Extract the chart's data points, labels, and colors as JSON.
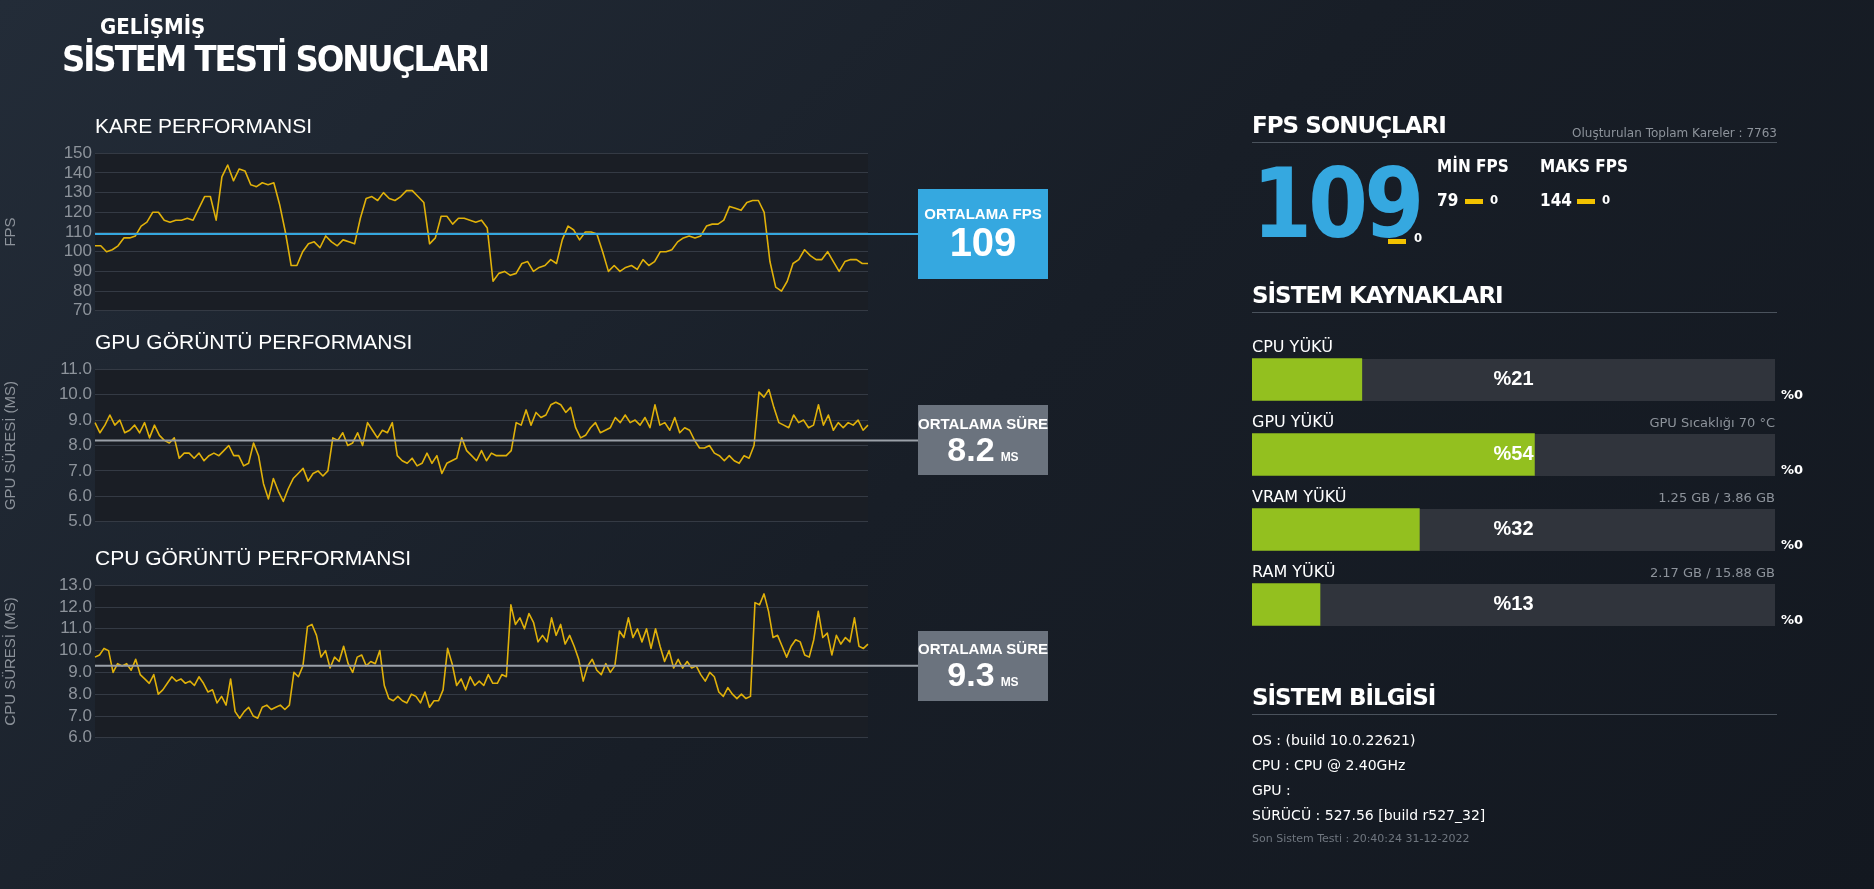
{
  "chart_data": [
    {
      "type": "other",
      "title": "SİSTEM TESTİ SONUÇLARI",
      "subtitle": "GELİŞMİŞ"
    },
    {
      "type": "line",
      "title": "KARE PERFORMANSI",
      "ylabel": "FPS",
      "ylim": [
        70,
        150
      ],
      "yticks": [
        70,
        80,
        90,
        100,
        110,
        120,
        130,
        140,
        150
      ],
      "grid": "y",
      "tick_labels": "y",
      "categories": [
        null,
        null,
        null,
        null,
        null,
        null,
        null,
        null,
        null,
        null,
        null,
        null,
        null,
        null,
        null,
        null,
        null,
        null,
        null,
        null,
        null,
        null,
        null,
        null,
        null,
        null,
        null,
        null,
        null,
        null,
        null,
        null,
        null,
        null,
        null,
        null,
        null,
        null,
        null,
        null,
        null,
        null,
        null,
        null,
        null,
        null,
        null,
        null,
        null,
        null,
        null,
        null,
        null,
        null,
        null,
        null,
        null,
        null,
        null,
        null,
        null,
        null,
        null,
        null,
        null,
        null,
        null,
        null,
        null,
        null,
        null,
        null,
        null,
        null,
        null,
        null,
        null,
        null,
        null,
        null,
        null,
        null,
        null,
        null,
        null,
        null,
        null,
        null,
        null,
        null,
        null,
        null,
        null,
        null,
        null,
        null,
        null,
        null,
        null,
        null,
        null,
        null,
        null,
        null,
        null,
        null,
        null,
        null,
        null,
        null,
        null,
        null,
        null,
        null,
        null,
        null,
        null,
        null,
        null,
        null,
        null,
        null,
        null,
        null,
        null,
        null,
        null,
        null,
        null,
        null,
        null,
        null,
        null,
        null,
        null
      ],
      "series": [
        {
          "color": "#e0b10a",
          "values": [
            103,
            103,
            100,
            101,
            103,
            107,
            107,
            108,
            113,
            115,
            120,
            120,
            116,
            115,
            116,
            116,
            117,
            116,
            122,
            128,
            128,
            116,
            138,
            144,
            136,
            142,
            141,
            134,
            133,
            135,
            134,
            135,
            124,
            110,
            93,
            93,
            100,
            104,
            105,
            102,
            108,
            105,
            103,
            106,
            105,
            104,
            117,
            127,
            128,
            126,
            130,
            127,
            126,
            128,
            131,
            131,
            128,
            125,
            104,
            107,
            118,
            118,
            114,
            117,
            117,
            116,
            115,
            116,
            112,
            85,
            89,
            90,
            88,
            89,
            94,
            95,
            90,
            92,
            93,
            96,
            94,
            106,
            113,
            111,
            106,
            110,
            110,
            109,
            100,
            90,
            93,
            90,
            92,
            93,
            91,
            96,
            93,
            95,
            100,
            100,
            101,
            105,
            107,
            108,
            107,
            108,
            113,
            114,
            114,
            116,
            123,
            122,
            121,
            125,
            126,
            126,
            120,
            95,
            82,
            80,
            85,
            94,
            96,
            101,
            98,
            96,
            96,
            100,
            95,
            90,
            95,
            96,
            96,
            94,
            94
          ]
        }
      ],
      "ref_lines": [
        {
          "axis": "y",
          "value": 109,
          "label": "ORTALAMA FPS",
          "color": "#35a8e0"
        }
      ],
      "annotations": [
        "109"
      ]
    },
    {
      "type": "line",
      "title": "GPU GÖRÜNTÜ PERFORMANSI",
      "ylabel": "GPU SÜRESİ (MS)",
      "ylim": [
        5,
        11
      ],
      "yticks": [
        {
          "value": 5,
          "label": "5.0"
        },
        {
          "value": 6,
          "label": "6.0"
        },
        {
          "value": 7,
          "label": "7.0"
        },
        {
          "value": 8,
          "label": "8.0"
        },
        {
          "value": 9,
          "label": "9.0"
        },
        {
          "value": 10,
          "label": "10.0"
        },
        {
          "value": 11,
          "label": "11.0"
        }
      ],
      "grid": "y",
      "tick_labels": "y",
      "categories": [
        null,
        null,
        null,
        null,
        null,
        null,
        null,
        null,
        null,
        null,
        null,
        null,
        null,
        null,
        null,
        null,
        null,
        null,
        null,
        null,
        null,
        null,
        null,
        null,
        null,
        null,
        null,
        null,
        null,
        null,
        null,
        null,
        null,
        null,
        null,
        null,
        null,
        null,
        null,
        null,
        null,
        null,
        null,
        null,
        null,
        null,
        null,
        null,
        null,
        null,
        null,
        null,
        null,
        null,
        null,
        null,
        null,
        null,
        null,
        null,
        null,
        null,
        null,
        null,
        null,
        null,
        null,
        null,
        null,
        null,
        null,
        null,
        null,
        null,
        null,
        null,
        null,
        null,
        null,
        null,
        null,
        null,
        null,
        null,
        null,
        null,
        null,
        null,
        null,
        null,
        null,
        null,
        null,
        null,
        null,
        null,
        null,
        null,
        null,
        null,
        null,
        null,
        null,
        null,
        null,
        null,
        null,
        null,
        null,
        null,
        null,
        null,
        null,
        null,
        null,
        null,
        null,
        null,
        null,
        null,
        null,
        null,
        null,
        null,
        null,
        null,
        null,
        null,
        null,
        null,
        null,
        null,
        null,
        null,
        null,
        null,
        null,
        null,
        null,
        null,
        null,
        null,
        null,
        null,
        null,
        null,
        null,
        null,
        null,
        null,
        null,
        null,
        null,
        null,
        null,
        null,
        null
      ],
      "series": [
        {
          "color": "#e0b10a",
          "values": [
            8.9,
            8.5,
            8.8,
            9.2,
            8.8,
            9.0,
            8.5,
            8.6,
            8.8,
            8.5,
            8.9,
            8.3,
            8.8,
            8.4,
            8.2,
            8.1,
            8.3,
            7.5,
            7.7,
            7.7,
            7.5,
            7.7,
            7.4,
            7.6,
            7.7,
            7.6,
            7.8,
            8.0,
            7.6,
            7.6,
            7.2,
            7.3,
            8.1,
            7.6,
            6.5,
            5.9,
            6.7,
            6.2,
            5.8,
            6.3,
            6.7,
            6.9,
            7.1,
            6.6,
            6.9,
            7.0,
            6.8,
            7.0,
            8.3,
            8.2,
            8.5,
            8.0,
            8.1,
            8.5,
            8.0,
            8.9,
            8.6,
            8.3,
            8.6,
            8.5,
            8.9,
            7.6,
            7.4,
            7.3,
            7.5,
            7.2,
            7.3,
            7.7,
            7.3,
            7.6,
            6.9,
            7.3,
            7.4,
            7.5,
            8.3,
            7.8,
            7.6,
            7.4,
            7.8,
            7.4,
            7.7,
            7.6,
            7.6,
            7.6,
            7.8,
            8.9,
            8.8,
            9.4,
            8.8,
            9.3,
            9.1,
            9.2,
            9.6,
            9.7,
            9.6,
            9.3,
            9.5,
            8.7,
            8.3,
            8.4,
            8.7,
            8.9,
            8.5,
            8.6,
            8.7,
            9.1,
            8.9,
            9.2,
            8.9,
            9.0,
            8.8,
            9.1,
            8.7,
            9.6,
            8.8,
            8.9,
            8.6,
            9.1,
            8.5,
            8.7,
            8.6,
            8.2,
            7.9,
            7.9,
            8.0,
            7.7,
            7.6,
            7.4,
            7.6,
            7.4,
            7.3,
            7.6,
            7.5,
            8.0,
            10.1,
            9.9,
            10.2,
            9.5,
            8.9,
            8.8,
            8.7,
            9.2,
            8.9,
            9.0,
            8.7,
            8.8,
            9.6,
            8.8,
            9.2,
            8.6,
            8.9,
            8.7,
            8.9,
            8.8,
            9.0,
            8.6,
            8.8
          ]
        }
      ],
      "ref_lines": [
        {
          "axis": "y",
          "value": 8.2,
          "label": "ORTALAMA SÜRE",
          "color": "#9aa0a8"
        }
      ],
      "annotations": [
        "8.2",
        "MS"
      ]
    },
    {
      "type": "line",
      "title": "CPU GÖRÜNTÜ PERFORMANSI",
      "ylabel": "CPU SÜRESİ (MS)",
      "ylim": [
        6,
        13
      ],
      "yticks": [
        {
          "value": 6,
          "label": "6.0"
        },
        {
          "value": 7,
          "label": "7.0"
        },
        {
          "value": 8,
          "label": "8.0"
        },
        {
          "value": 9,
          "label": "9.0"
        },
        {
          "value": 10,
          "label": "10.0"
        },
        {
          "value": 11,
          "label": "11.0"
        },
        {
          "value": 12,
          "label": "12.0"
        },
        {
          "value": 13,
          "label": "13.0"
        }
      ],
      "grid": "y",
      "tick_labels": "y",
      "categories": [
        null,
        null,
        null,
        null,
        null,
        null,
        null,
        null,
        null,
        null,
        null,
        null,
        null,
        null,
        null,
        null,
        null,
        null,
        null,
        null,
        null,
        null,
        null,
        null,
        null,
        null,
        null,
        null,
        null,
        null,
        null,
        null,
        null,
        null,
        null,
        null,
        null,
        null,
        null,
        null,
        null,
        null,
        null,
        null,
        null,
        null,
        null,
        null,
        null,
        null,
        null,
        null,
        null,
        null,
        null,
        null,
        null,
        null,
        null,
        null,
        null,
        null,
        null,
        null,
        null,
        null,
        null,
        null,
        null,
        null,
        null,
        null,
        null,
        null,
        null,
        null,
        null,
        null,
        null,
        null,
        null,
        null,
        null,
        null,
        null,
        null,
        null,
        null,
        null,
        null,
        null,
        null,
        null,
        null,
        null,
        null,
        null,
        null,
        null,
        null,
        null,
        null,
        null,
        null,
        null,
        null,
        null,
        null,
        null,
        null,
        null,
        null,
        null,
        null,
        null,
        null,
        null,
        null,
        null,
        null,
        null,
        null,
        null,
        null,
        null,
        null,
        null,
        null,
        null,
        null,
        null,
        null,
        null,
        null,
        null,
        null,
        null,
        null,
        null,
        null,
        null,
        null,
        null,
        null,
        null,
        null,
        null,
        null,
        null,
        null,
        null,
        null,
        null,
        null,
        null,
        null,
        null,
        null,
        null,
        null,
        null,
        null,
        null,
        null,
        null,
        null,
        null,
        null,
        null,
        null,
        null,
        null
      ],
      "series": [
        {
          "color": "#e0b10a",
          "values": [
            9.7,
            9.8,
            10.1,
            10.0,
            9.0,
            9.4,
            9.3,
            9.4,
            9.1,
            9.6,
            8.9,
            8.7,
            8.5,
            8.9,
            8.0,
            8.2,
            8.5,
            8.8,
            8.6,
            8.7,
            8.5,
            8.6,
            8.4,
            8.8,
            8.5,
            8.1,
            8.2,
            7.6,
            7.9,
            7.5,
            8.7,
            7.2,
            6.9,
            7.2,
            7.4,
            7.0,
            6.9,
            7.4,
            7.5,
            7.3,
            7.4,
            7.5,
            7.3,
            7.5,
            9.0,
            8.8,
            9.3,
            11.1,
            11.2,
            10.7,
            9.7,
            10.0,
            9.2,
            9.7,
            9.5,
            10.2,
            9.4,
            9.0,
            9.7,
            9.8,
            9.3,
            9.5,
            9.4,
            10.0,
            8.4,
            7.8,
            7.7,
            7.9,
            7.7,
            7.6,
            8.0,
            7.9,
            7.6,
            8.1,
            7.4,
            7.7,
            7.7,
            8.2,
            10.1,
            9.4,
            8.4,
            8.7,
            8.2,
            8.8,
            8.4,
            8.6,
            8.4,
            8.9,
            8.5,
            8.5,
            8.9,
            8.8,
            12.1,
            11.2,
            11.5,
            11.0,
            11.7,
            11.3,
            10.4,
            10.7,
            10.4,
            11.5,
            10.7,
            11.2,
            10.3,
            10.7,
            10.2,
            9.6,
            8.6,
            9.3,
            9.6,
            9.1,
            8.9,
            9.4,
            9.0,
            9.3,
            10.9,
            10.6,
            11.5,
            10.6,
            11.0,
            10.4,
            11.0,
            10.1,
            11.0,
            10.2,
            9.5,
            10.0,
            9.2,
            9.6,
            9.2,
            9.5,
            9.2,
            9.3,
            8.9,
            8.6,
            9.0,
            8.8,
            8.1,
            7.9,
            8.3,
            8.0,
            7.8,
            8.0,
            7.8,
            7.9,
            12.2,
            12.1,
            12.6,
            11.8,
            10.6,
            10.7,
            10.2,
            9.7,
            10.2,
            10.5,
            10.4,
            9.8,
            9.7,
            10.5,
            11.8,
            10.6,
            10.8,
            9.8,
            10.7,
            10.3,
            10.6,
            10.4,
            11.5,
            10.2,
            10.1,
            10.3
          ]
        }
      ],
      "ref_lines": [
        {
          "axis": "y",
          "value": 9.3,
          "label": "ORTALAMA SÜRE",
          "color": "#9aa0a8"
        }
      ],
      "annotations": [
        "9.3",
        "MS"
      ]
    },
    {
      "type": "other",
      "title": "FPS SONUÇLARI",
      "subtitle": "Oluşturulan Toplam Kareler : 7763",
      "annotations": [
        "109",
        "0",
        "MİN FPS",
        "79",
        "0",
        "MAKS FPS",
        "144",
        "0"
      ]
    },
    {
      "type": "bar",
      "title": "SİSTEM KAYNAKLARI",
      "orientation": "horizontal",
      "tick_labels": false,
      "categories": [
        "CPU YÜKÜ",
        "GPU YÜKÜ",
        "VRAM YÜKÜ",
        "RAM YÜKÜ"
      ],
      "values": [
        21,
        54,
        32,
        13
      ],
      "color": "#93c01f",
      "value_labels": [
        "%21",
        "%54",
        "%32",
        "%13"
      ],
      "xlim": [
        0,
        100
      ],
      "annotations": [
        "%0",
        "GPU Sıcaklığı 70 °C",
        "%0",
        "1.25 GB / 3.86 GB",
        "%0",
        "2.17 GB / 15.88 GB",
        "%0"
      ]
    },
    {
      "type": "other",
      "title": "SİSTEM BİLGİSİ",
      "annotations": [
        "OS : (build 10.0.22621)",
        "CPU : CPU @ 2.40GHz",
        "GPU :",
        "SÜRÜCÜ : 527.56 [build r527_32]",
        "Son Sistem Testi : 20:40:24 31-12-2022"
      ]
    }
  ]
}
